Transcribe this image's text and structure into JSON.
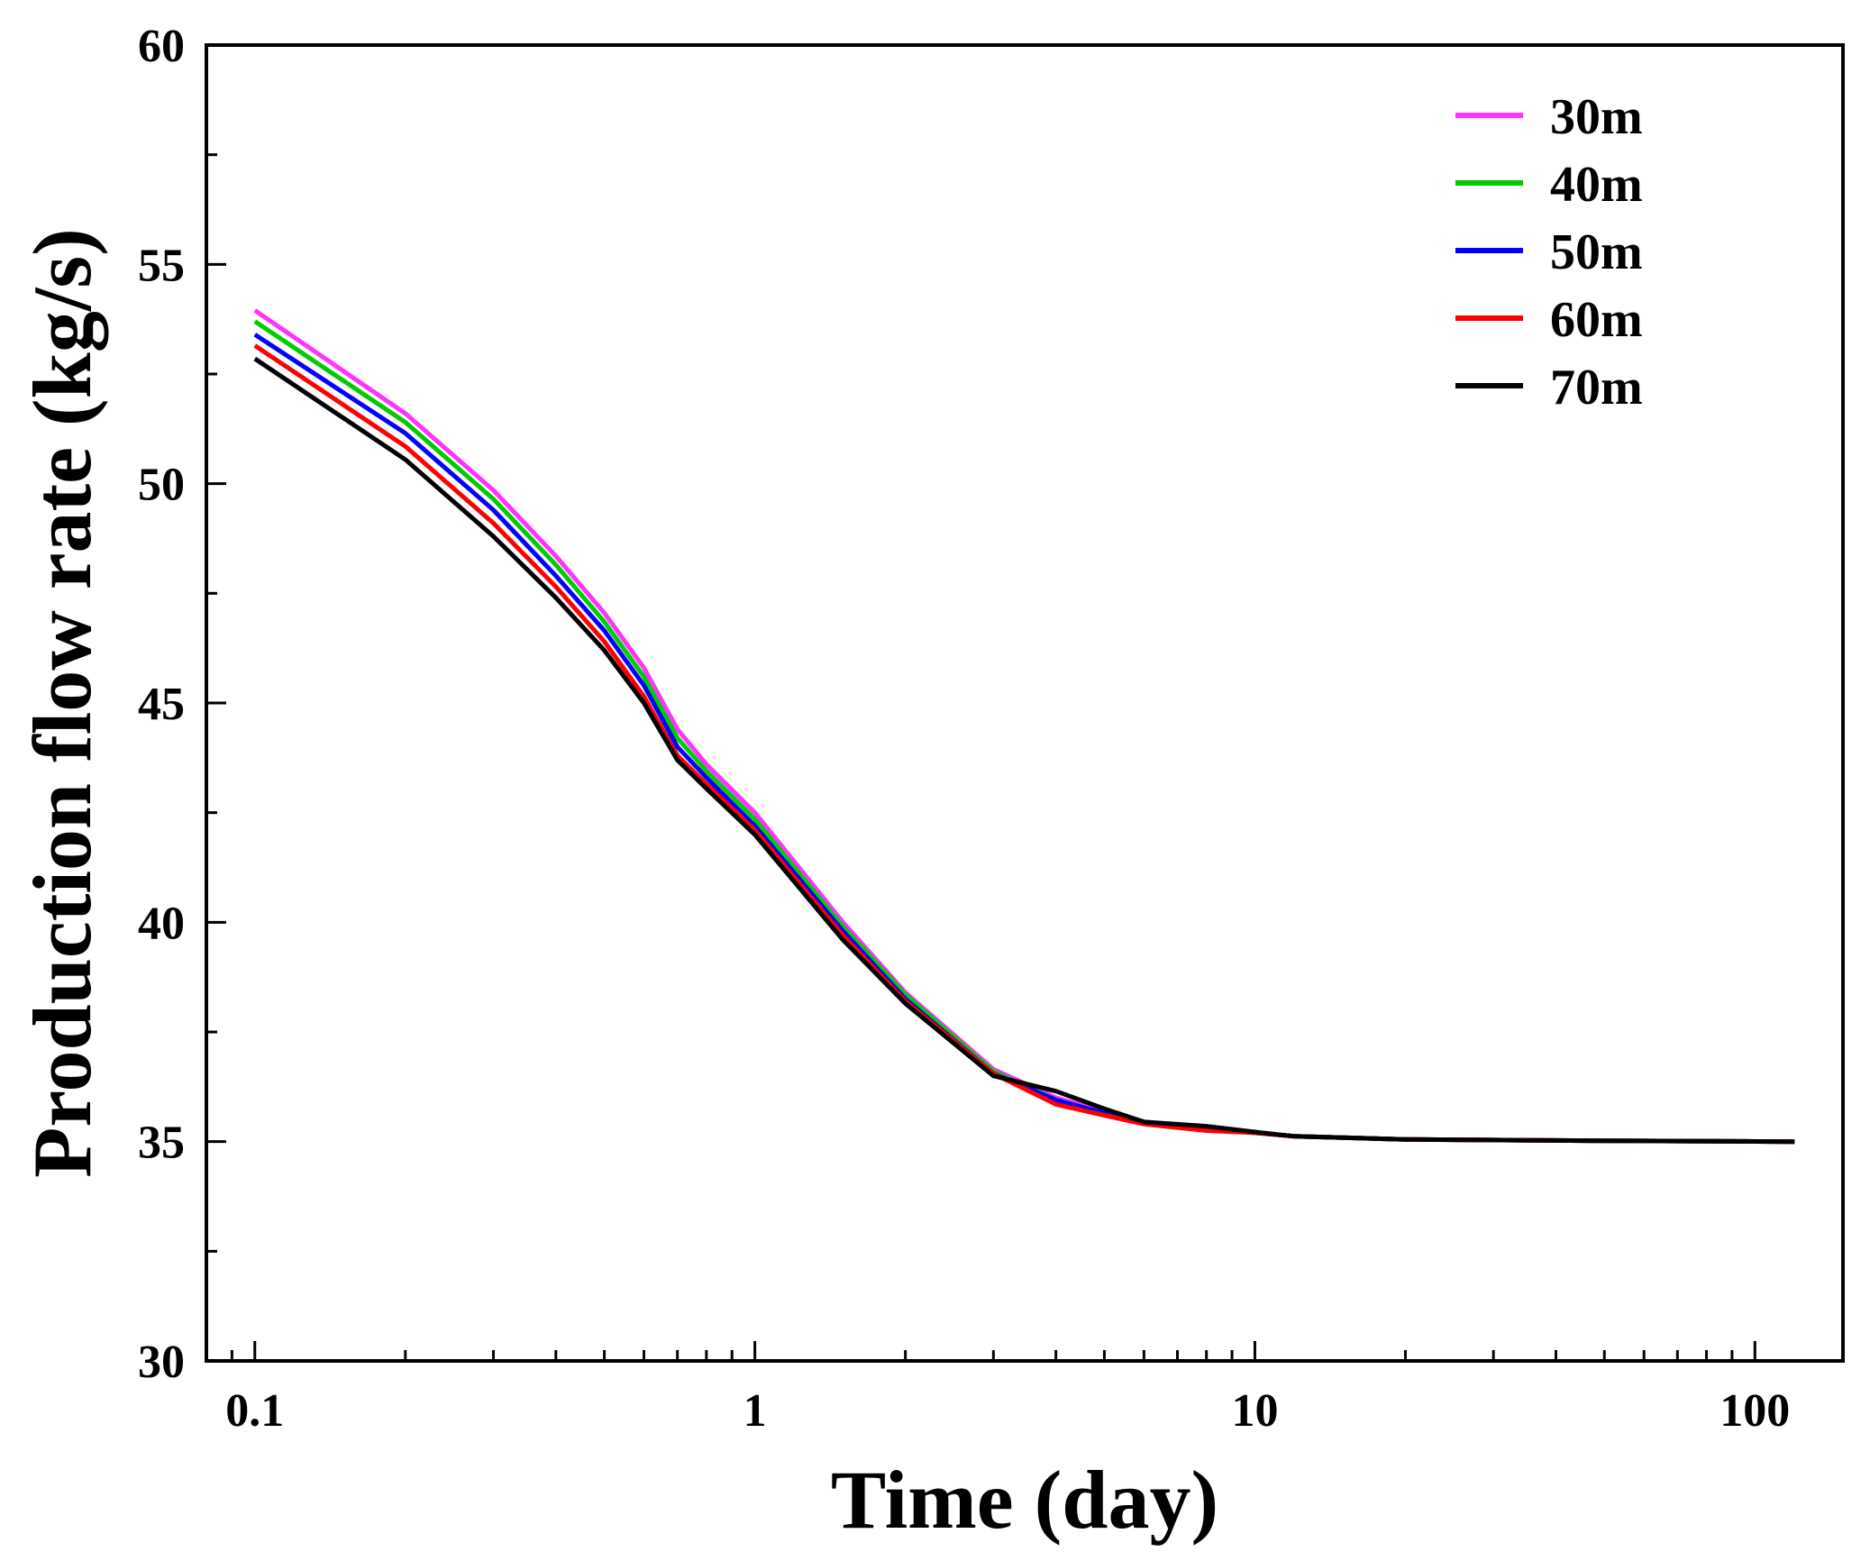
{
  "chart_data": {
    "type": "line",
    "xlabel": "Time (day)",
    "ylabel": "Production flow rate (kg/s)",
    "xscale": "log",
    "xlim": [
      0.08,
      150
    ],
    "ylim": [
      30,
      60
    ],
    "x_ticks": [
      0.1,
      1,
      10,
      100
    ],
    "x_tick_labels": [
      "0.1",
      "1",
      "10",
      "100"
    ],
    "y_ticks": [
      30,
      35,
      40,
      45,
      50,
      55,
      60
    ],
    "y_tick_labels": [
      "30",
      "35",
      "40",
      "45",
      "50",
      "55",
      "60"
    ],
    "legend_position": "top-right",
    "grid": false,
    "x": [
      0.1,
      0.2,
      0.3,
      0.4,
      0.5,
      0.6,
      0.7,
      0.8,
      1,
      1.5,
      2,
      3,
      4,
      5,
      6,
      8,
      10,
      12,
      20,
      50,
      120
    ],
    "series": [
      {
        "name": "30m",
        "color": "#ff33ff",
        "values": [
          53.95,
          51.6,
          49.85,
          48.35,
          47.05,
          45.8,
          44.4,
          43.6,
          42.5,
          40.0,
          38.4,
          36.65,
          36.0,
          35.7,
          35.45,
          35.3,
          35.2,
          35.12,
          35.05,
          35.02,
          35.0
        ]
      },
      {
        "name": "40m",
        "color": "#00cc00",
        "values": [
          53.7,
          51.4,
          49.65,
          48.15,
          46.85,
          45.6,
          44.2,
          43.45,
          42.35,
          39.9,
          38.35,
          36.6,
          35.95,
          35.65,
          35.45,
          35.3,
          35.2,
          35.12,
          35.05,
          35.02,
          35.0
        ]
      },
      {
        "name": "50m",
        "color": "#0000ff",
        "values": [
          53.4,
          51.15,
          49.4,
          47.9,
          46.65,
          45.4,
          44.0,
          43.3,
          42.2,
          39.8,
          38.25,
          36.55,
          35.95,
          35.65,
          35.45,
          35.3,
          35.2,
          35.12,
          35.05,
          35.02,
          35.0
        ]
      },
      {
        "name": "60m",
        "color": "#ff0000",
        "values": [
          53.15,
          50.85,
          49.1,
          47.65,
          46.4,
          45.15,
          43.8,
          43.15,
          42.1,
          39.7,
          38.2,
          36.55,
          35.85,
          35.6,
          35.4,
          35.25,
          35.2,
          35.12,
          35.05,
          35.02,
          35.0
        ]
      },
      {
        "name": "70m",
        "color": "#000000",
        "values": [
          52.85,
          50.55,
          48.8,
          47.4,
          46.2,
          45.0,
          43.7,
          43.05,
          42.0,
          39.6,
          38.15,
          36.5,
          36.15,
          35.75,
          35.45,
          35.35,
          35.22,
          35.12,
          35.05,
          35.02,
          35.0
        ]
      }
    ]
  }
}
